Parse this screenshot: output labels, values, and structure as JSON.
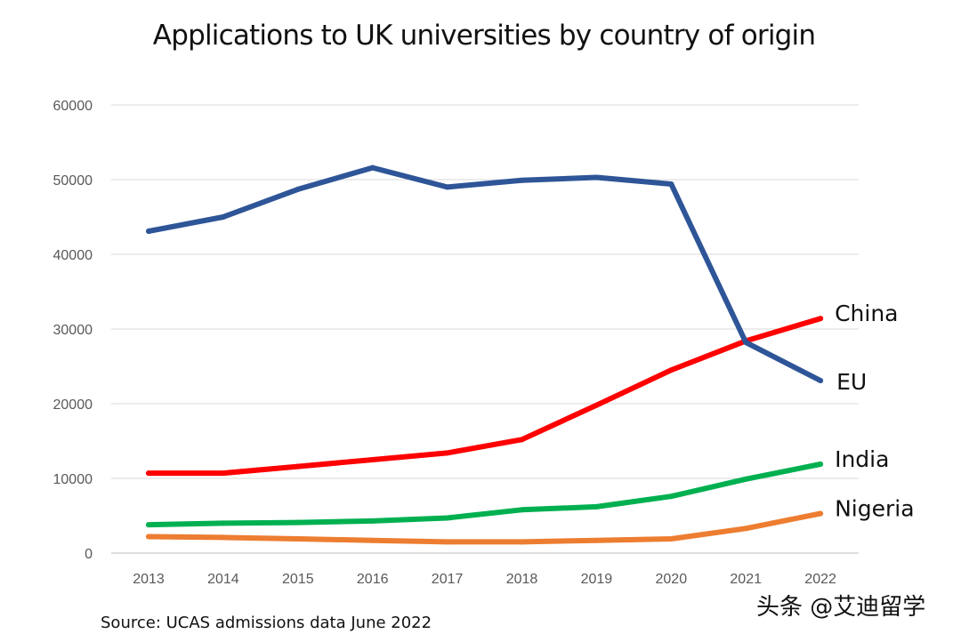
{
  "chart_data": {
    "type": "line",
    "title": "Applications to UK universities by country of origin",
    "xlabel": "",
    "ylabel": "",
    "x": [
      "2013",
      "2014",
      "2015",
      "2016",
      "2017",
      "2018",
      "2019",
      "2020",
      "2021",
      "2022"
    ],
    "ylim": [
      0,
      60000
    ],
    "yticks": [
      "0",
      "10000",
      "20000",
      "30000",
      "40000",
      "50000",
      "60000"
    ],
    "grid": true,
    "legend": "end-of-line labels",
    "series": [
      {
        "name": "EU",
        "color": "#2E5597",
        "values": [
          43100,
          45000,
          48700,
          51600,
          49000,
          49900,
          50300,
          49400,
          28200,
          23100
        ]
      },
      {
        "name": "China",
        "color": "#FF0000",
        "values": [
          10700,
          10700,
          11600,
          12500,
          13400,
          15200,
          19800,
          24500,
          28400,
          31400
        ]
      },
      {
        "name": "India",
        "color": "#00B050",
        "values": [
          3800,
          4000,
          4100,
          4300,
          4700,
          5800,
          6200,
          7600,
          9900,
          11900
        ]
      },
      {
        "name": "Nigeria",
        "color": "#ED7D31",
        "values": [
          2200,
          2100,
          1900,
          1700,
          1500,
          1500,
          1700,
          1900,
          3300,
          5300
        ]
      }
    ],
    "annotations": {
      "source": "Source: UCAS admissions data June 2022"
    }
  },
  "watermark": {
    "text": "头条 @艾迪留学"
  },
  "colors": {
    "grid": "#D9D9D9",
    "axis": "#BFBFBF"
  }
}
